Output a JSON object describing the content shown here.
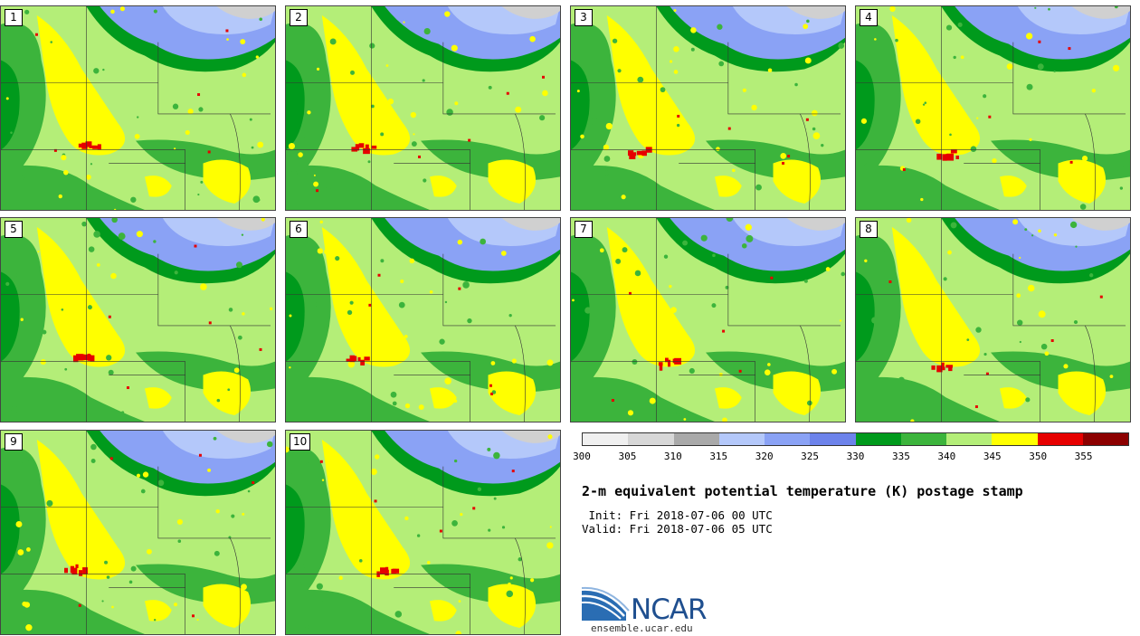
{
  "title": "2-m equivalent potential temperature (K) postage stamp",
  "init_line": " Init: Fri 2018-07-06 00 UTC",
  "valid_line": "Valid: Fri 2018-07-06 05 UTC",
  "logo_text": "NCAR",
  "logo_url": "ensemble.ucar.edu",
  "panels": [
    {
      "label": "1"
    },
    {
      "label": "2"
    },
    {
      "label": "3"
    },
    {
      "label": "4"
    },
    {
      "label": "5"
    },
    {
      "label": "6"
    },
    {
      "label": "7"
    },
    {
      "label": "8"
    },
    {
      "label": "9"
    },
    {
      "label": "10"
    }
  ],
  "colorbar": {
    "ticks": [
      "300",
      "305",
      "310",
      "315",
      "320",
      "325",
      "330",
      "335",
      "340",
      "345",
      "350",
      "355"
    ],
    "colors": [
      "#f0f0f0",
      "#d7d7d7",
      "#a9a9a9",
      "#b4c8fa",
      "#8aa2f5",
      "#6d83eb",
      "#009a1c",
      "#3cb43c",
      "#b4ee78",
      "#ffff00",
      "#e60000",
      "#8c0000"
    ]
  }
}
